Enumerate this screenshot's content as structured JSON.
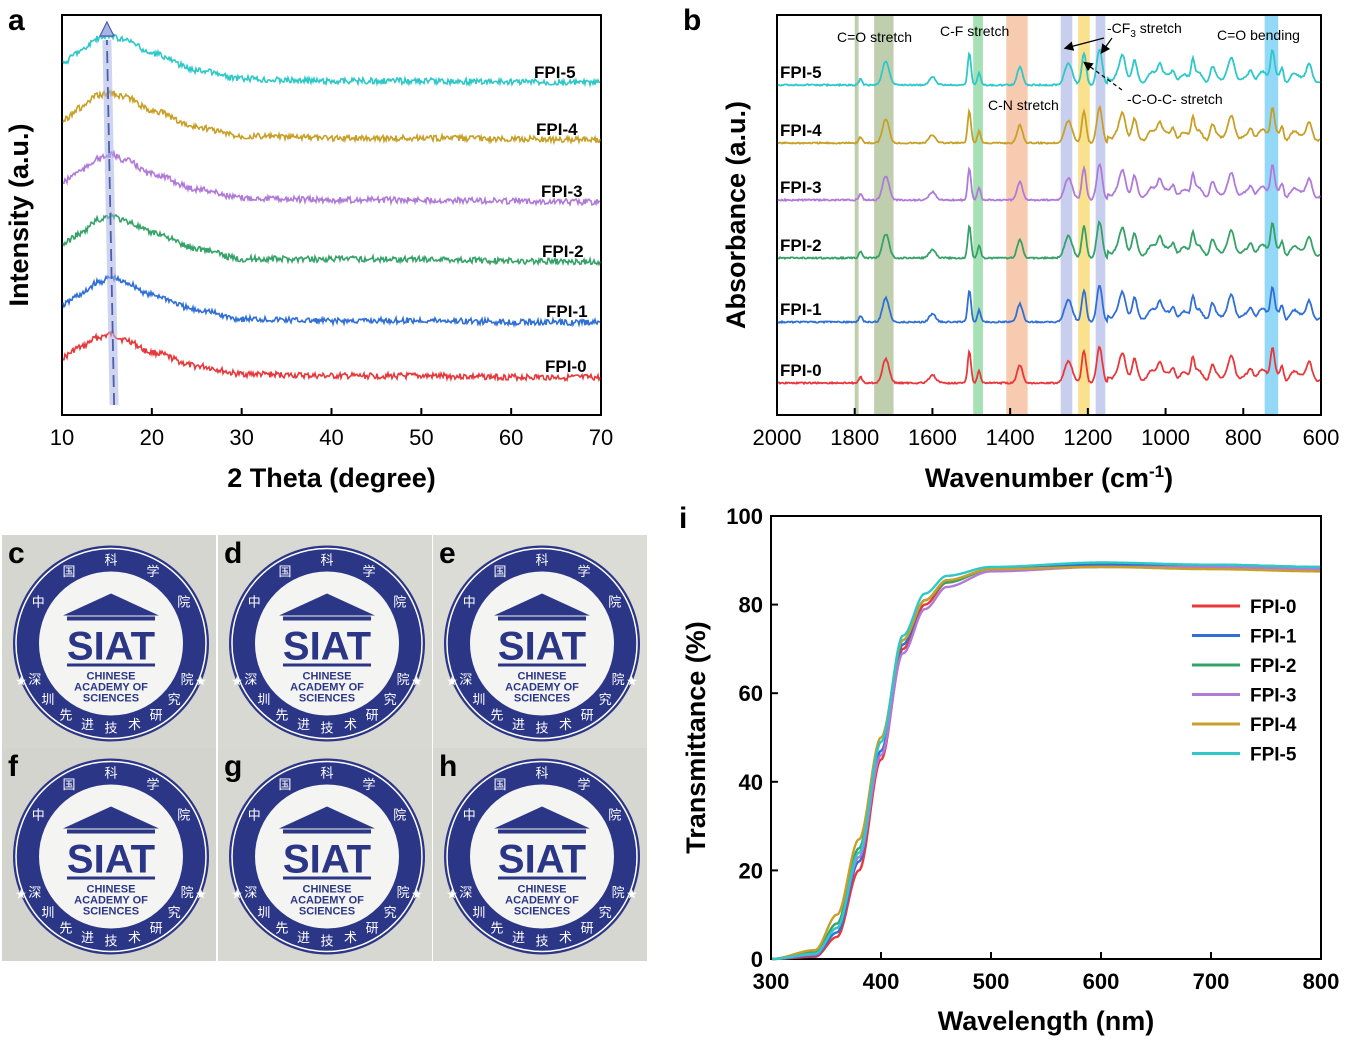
{
  "colors": {
    "FPI-0": "#e8383b",
    "FPI-1": "#2f6fd6",
    "FPI-2": "#35a268",
    "FPI-3": "#b07ad9",
    "FPI-4": "#c8a028",
    "FPI-5": "#2ec8c8",
    "emblem_blue": "#2b3687"
  },
  "chart_data": [
    {
      "panel": "a",
      "type": "line",
      "xlabel": "2 Theta (degree)",
      "ylabel": "Intensity (a.u.)",
      "xlim": [
        10,
        70
      ],
      "x_ticks": [
        "10",
        "20",
        "30",
        "40",
        "50",
        "60",
        "70"
      ],
      "y_ticks": "none (arbitrary units, curves vertically offset)",
      "peak_guide_x": [
        15,
        15.8
      ],
      "series": [
        {
          "name": "FPI-0",
          "x": [
            10,
            12,
            14,
            15.5,
            17,
            20,
            25,
            30,
            40,
            50,
            60,
            70
          ],
          "y": [
            0.45,
            0.65,
            0.85,
            0.92,
            0.8,
            0.55,
            0.28,
            0.12,
            0.08,
            0.08,
            0.06,
            0.05
          ]
        },
        {
          "name": "FPI-1",
          "x": [
            10,
            12,
            14,
            15.5,
            17,
            20,
            25,
            30,
            40,
            50,
            60,
            70
          ],
          "y": [
            0.4,
            0.6,
            0.85,
            0.95,
            0.85,
            0.6,
            0.3,
            0.12,
            0.08,
            0.09,
            0.06,
            0.05
          ]
        },
        {
          "name": "FPI-2",
          "x": [
            10,
            12,
            14,
            15.5,
            17,
            20,
            25,
            30,
            40,
            50,
            60,
            70
          ],
          "y": [
            0.42,
            0.62,
            0.9,
            1.0,
            0.88,
            0.65,
            0.33,
            0.12,
            0.12,
            0.12,
            0.08,
            0.06
          ]
        },
        {
          "name": "FPI-3",
          "x": [
            10,
            12,
            14,
            15.5,
            17,
            20,
            25,
            30,
            40,
            50,
            60,
            70
          ],
          "y": [
            0.45,
            0.68,
            0.92,
            1.0,
            0.9,
            0.62,
            0.32,
            0.14,
            0.1,
            0.1,
            0.08,
            0.06
          ]
        },
        {
          "name": "FPI-4",
          "x": [
            10,
            12,
            14,
            15.5,
            17,
            20,
            25,
            30,
            40,
            50,
            60,
            70
          ],
          "y": [
            0.45,
            0.7,
            0.95,
            1.0,
            0.92,
            0.65,
            0.32,
            0.14,
            0.1,
            0.1,
            0.08,
            0.06
          ]
        },
        {
          "name": "FPI-5",
          "x": [
            10,
            12,
            14,
            15.5,
            17,
            20,
            25,
            30,
            40,
            50,
            60,
            70
          ],
          "y": [
            0.45,
            0.7,
            0.95,
            1.0,
            0.92,
            0.65,
            0.32,
            0.14,
            0.1,
            0.1,
            0.08,
            0.06
          ]
        }
      ]
    },
    {
      "panel": "b",
      "type": "line",
      "xlabel": "Wavenumber (cm",
      "xlabel_sup": "-1",
      "xlabel_tail": ")",
      "ylabel": "Absorbance (a.u.)",
      "xlim": [
        2000,
        600
      ],
      "x_ticks": [
        "2000",
        "1800",
        "1600",
        "1400",
        "1200",
        "1000",
        "800",
        "600"
      ],
      "band_wavenumbers": [
        1785,
        1720,
        1480,
        1375,
        1255,
        1210,
        1170,
        725
      ],
      "bands": [
        {
          "from": 1800,
          "to": 1790,
          "color": "#8aa86a"
        },
        {
          "from": 1750,
          "to": 1700,
          "color": "#8aa86a"
        },
        {
          "from": 1495,
          "to": 1470,
          "color": "#5cc878"
        },
        {
          "from": 1410,
          "to": 1355,
          "color": "#f0a070"
        },
        {
          "from": 1270,
          "to": 1240,
          "color": "#9aa8e0"
        },
        {
          "from": 1225,
          "to": 1195,
          "color": "#f5c830"
        },
        {
          "from": 1180,
          "to": 1155,
          "color": "#9aa8e0"
        },
        {
          "from": 745,
          "to": 710,
          "color": "#3cb8f0"
        }
      ],
      "annotations": [
        "C=O stretch",
        "C-F stretch",
        "C-N stretch",
        "-CF",
        "3",
        " stretch",
        "-C-O-C- stretch",
        "C=O bending"
      ],
      "peaks": [
        {
          "x": 1785,
          "h": 0.15,
          "w": 6
        },
        {
          "x": 1720,
          "h": 0.6,
          "w": 12
        },
        {
          "x": 1600,
          "h": 0.2,
          "w": 12
        },
        {
          "x": 1505,
          "h": 0.8,
          "w": 6
        },
        {
          "x": 1480,
          "h": 0.3,
          "w": 6
        },
        {
          "x": 1375,
          "h": 0.45,
          "w": 10
        },
        {
          "x": 1250,
          "h": 0.55,
          "w": 14
        },
        {
          "x": 1210,
          "h": 0.8,
          "w": 8
        },
        {
          "x": 1170,
          "h": 0.9,
          "w": 10
        },
        {
          "x": 1110,
          "h": 0.45,
          "w": 10
        },
        {
          "x": 1080,
          "h": 0.4,
          "w": 8
        },
        {
          "x": 1015,
          "h": 0.35,
          "w": 8
        },
        {
          "x": 980,
          "h": 0.3,
          "w": 8
        },
        {
          "x": 930,
          "h": 0.45,
          "w": 6
        },
        {
          "x": 880,
          "h": 0.3,
          "w": 8
        },
        {
          "x": 830,
          "h": 0.35,
          "w": 10
        },
        {
          "x": 780,
          "h": 0.25,
          "w": 8
        },
        {
          "x": 725,
          "h": 0.7,
          "w": 7
        },
        {
          "x": 700,
          "h": 0.3,
          "w": 6
        },
        {
          "x": 630,
          "h": 0.25,
          "w": 8
        }
      ],
      "series": [
        {
          "name": "FPI-0"
        },
        {
          "name": "FPI-1"
        },
        {
          "name": "FPI-2"
        },
        {
          "name": "FPI-3"
        },
        {
          "name": "FPI-4"
        },
        {
          "name": "FPI-5"
        }
      ]
    },
    {
      "panel": "i",
      "type": "line",
      "xlabel": "Wavelength (nm)",
      "ylabel": "Transmittance (%)",
      "xlim": [
        300,
        800
      ],
      "ylim": [
        0,
        100
      ],
      "x_ticks": [
        "300",
        "400",
        "500",
        "600",
        "700",
        "800"
      ],
      "y_ticks": [
        "0",
        "20",
        "40",
        "60",
        "80",
        "100"
      ],
      "legend": "right",
      "series": [
        {
          "name": "FPI-0",
          "x": [
            300,
            340,
            360,
            380,
            400,
            420,
            440,
            460,
            500,
            600,
            700,
            800
          ],
          "y": [
            0,
            0.5,
            5,
            20,
            45,
            70,
            80,
            85,
            88,
            89,
            88.5,
            88
          ]
        },
        {
          "name": "FPI-1",
          "x": [
            300,
            340,
            360,
            380,
            400,
            420,
            440,
            460,
            500,
            600,
            700,
            800
          ],
          "y": [
            0,
            0.8,
            6,
            22,
            47,
            71,
            81,
            85.5,
            88,
            89,
            89,
            88.5
          ]
        },
        {
          "name": "FPI-2",
          "x": [
            300,
            340,
            360,
            380,
            400,
            420,
            440,
            460,
            500,
            600,
            700,
            800
          ],
          "y": [
            0,
            1.5,
            8,
            25,
            49,
            72,
            81,
            85,
            88,
            88.5,
            88.5,
            88
          ]
        },
        {
          "name": "FPI-3",
          "x": [
            300,
            340,
            360,
            380,
            400,
            420,
            440,
            460,
            500,
            600,
            700,
            800
          ],
          "y": [
            0,
            1,
            7,
            23,
            46,
            69,
            79,
            84,
            87.5,
            88.5,
            88.5,
            88
          ]
        },
        {
          "name": "FPI-4",
          "x": [
            300,
            340,
            360,
            380,
            400,
            420,
            440,
            460,
            500,
            600,
            700,
            800
          ],
          "y": [
            0,
            2,
            10,
            27,
            50,
            72,
            81,
            85.5,
            88,
            88.5,
            88,
            87.5
          ]
        },
        {
          "name": "FPI-5",
          "x": [
            300,
            340,
            360,
            380,
            400,
            420,
            440,
            460,
            500,
            600,
            700,
            800
          ],
          "y": [
            0,
            1.2,
            7,
            24,
            49,
            73,
            82.5,
            86.5,
            88.5,
            89.5,
            89,
            88.5
          ]
        }
      ]
    }
  ],
  "photos": {
    "letters": [
      "c",
      "d",
      "e",
      "f",
      "g",
      "h"
    ],
    "top_chars": [
      "中",
      "国",
      "科",
      "学",
      "院"
    ],
    "bottom_chars": [
      "深",
      "圳",
      "先",
      "进",
      "技",
      "术",
      "研",
      "究",
      "院"
    ],
    "logo_text": "SIAT",
    "sub_lines": [
      "CHINESE",
      "ACADEMY OF",
      "SCIENCES"
    ]
  }
}
